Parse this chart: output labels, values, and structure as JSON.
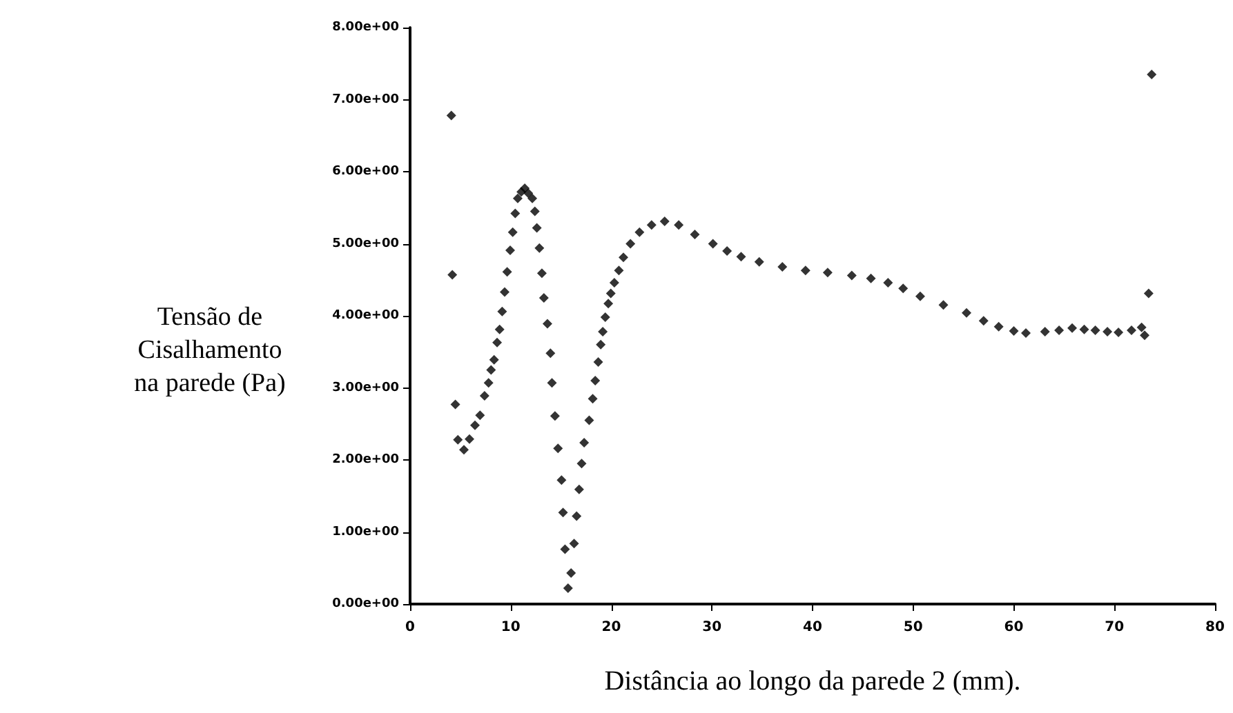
{
  "chart_data": {
    "type": "scatter",
    "xlabel": "Distância ao longo da parede 2 (mm).",
    "ylabel": "Tensão de\nCisalhamento\nna parede (Pa)",
    "marker": "diamond",
    "grid": false,
    "xlim": [
      0,
      80
    ],
    "xticks": [
      0,
      10,
      20,
      30,
      40,
      50,
      60,
      70,
      80
    ],
    "ylim": [
      0,
      8
    ],
    "yticks": [
      {
        "value": 0,
        "label": "0.00e+00"
      },
      {
        "value": 1,
        "label": "1.00e+00"
      },
      {
        "value": 2,
        "label": "2.00e+00"
      },
      {
        "value": 3,
        "label": "3.00e+00"
      },
      {
        "value": 4,
        "label": "4.00e+00"
      },
      {
        "value": 5,
        "label": "5.00e+00"
      },
      {
        "value": 6,
        "label": "6.00e+00"
      },
      {
        "value": 7,
        "label": "7.00e+00"
      },
      {
        "value": 8,
        "label": "8.00e+00"
      }
    ],
    "series": [
      {
        "color": "#000000",
        "x": [
          4.1,
          4.2,
          4.5,
          4.75,
          5.35,
          5.9,
          6.45,
          6.95,
          7.4,
          7.8,
          8.05,
          8.35,
          8.65,
          8.9,
          9.15,
          9.4,
          9.65,
          9.95,
          10.2,
          10.45,
          10.7,
          11.05,
          11.4,
          11.75,
          12.15,
          12.4,
          12.6,
          12.85,
          13.1,
          13.3,
          13.65,
          13.95,
          14.1,
          14.4,
          14.7,
          15.05,
          15.2,
          15.4,
          15.7,
          16.0,
          16.3,
          16.55,
          16.8,
          17.05,
          17.3,
          17.8,
          18.15,
          18.4,
          18.7,
          18.95,
          19.15,
          19.4,
          19.7,
          19.95,
          20.3,
          20.75,
          21.2,
          21.9,
          22.8,
          24.0,
          25.3,
          26.7,
          28.3,
          30.1,
          31.5,
          32.9,
          34.7,
          37.0,
          39.3,
          41.5,
          43.9,
          45.8,
          47.5,
          49.0,
          50.7,
          53.0,
          55.3,
          57.0,
          58.5,
          60.0,
          61.2,
          63.1,
          64.5,
          65.8,
          67.0,
          68.1,
          69.3,
          70.4,
          71.7,
          72.7,
          73.0,
          73.4,
          73.7
        ],
        "values": [
          6.78,
          4.57,
          2.77,
          2.28,
          2.14,
          2.29,
          2.48,
          2.62,
          2.89,
          3.07,
          3.25,
          3.39,
          3.63,
          3.81,
          4.06,
          4.33,
          4.61,
          4.91,
          5.16,
          5.42,
          5.63,
          5.72,
          5.77,
          5.7,
          5.63,
          5.45,
          5.22,
          4.94,
          4.59,
          4.25,
          3.89,
          3.48,
          3.07,
          2.61,
          2.16,
          1.72,
          1.27,
          0.76,
          0.22,
          0.43,
          0.84,
          1.22,
          1.59,
          1.95,
          2.24,
          2.55,
          2.85,
          3.1,
          3.36,
          3.6,
          3.78,
          3.98,
          4.17,
          4.31,
          4.46,
          4.63,
          4.81,
          5.0,
          5.16,
          5.26,
          5.31,
          5.26,
          5.13,
          5.0,
          4.9,
          4.82,
          4.75,
          4.68,
          4.63,
          4.6,
          4.56,
          4.52,
          4.46,
          4.38,
          4.27,
          4.15,
          4.04,
          3.93,
          3.85,
          3.79,
          3.76,
          3.78,
          3.8,
          3.83,
          3.81,
          3.8,
          3.78,
          3.77,
          3.8,
          3.84,
          3.73,
          4.31,
          7.35
        ]
      }
    ]
  }
}
